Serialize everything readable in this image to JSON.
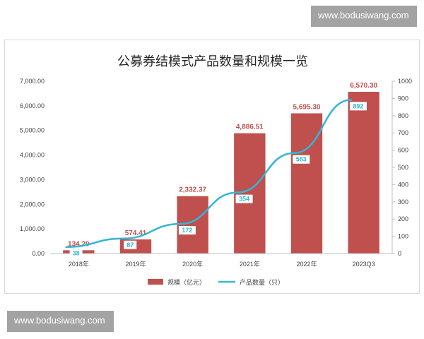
{
  "watermark": {
    "top_text": "www.bodusiwang.com",
    "bottom_text": "www.bodusiwang.com"
  },
  "chart_data": {
    "type": "bar",
    "title": "公募券结模式产品数量和规模一览",
    "categories": [
      "2018年",
      "2019年",
      "2020年",
      "2021年",
      "2022年",
      "2023Q3"
    ],
    "series": [
      {
        "name": "规模（亿元）",
        "type": "bar",
        "axis": "left",
        "values": [
          134.29,
          574.41,
          2332.37,
          4886.51,
          5695.3,
          6570.3
        ],
        "labels": [
          "134.29",
          "574.41",
          "2,332.37",
          "4,886.51",
          "5,695.30",
          "6,570.30"
        ],
        "color": "#c0504d"
      },
      {
        "name": "产品数量（只）",
        "type": "line",
        "axis": "right",
        "values": [
          38,
          87,
          172,
          354,
          583,
          892
        ],
        "labels": [
          "38",
          "87",
          "172",
          "354",
          "583",
          "892"
        ],
        "color": "#31b6d8"
      }
    ],
    "y_left": {
      "ylim": [
        0,
        7000
      ],
      "ticks": [
        0,
        1000,
        2000,
        3000,
        4000,
        5000,
        6000,
        7000
      ],
      "tick_labels": [
        "0.00",
        "1,000.00",
        "2,000.00",
        "3,000.00",
        "4,000.00",
        "5,000.00",
        "6,000.00",
        "7,000.00"
      ]
    },
    "y_right": {
      "ylim": [
        0,
        1000
      ],
      "ticks": [
        0,
        100,
        200,
        300,
        400,
        500,
        600,
        700,
        800,
        900,
        1000
      ],
      "tick_labels": [
        "0",
        "100",
        "200",
        "300",
        "400",
        "500",
        "600",
        "700",
        "800",
        "900",
        "1000"
      ]
    },
    "grid": false,
    "legend_position": "bottom"
  }
}
